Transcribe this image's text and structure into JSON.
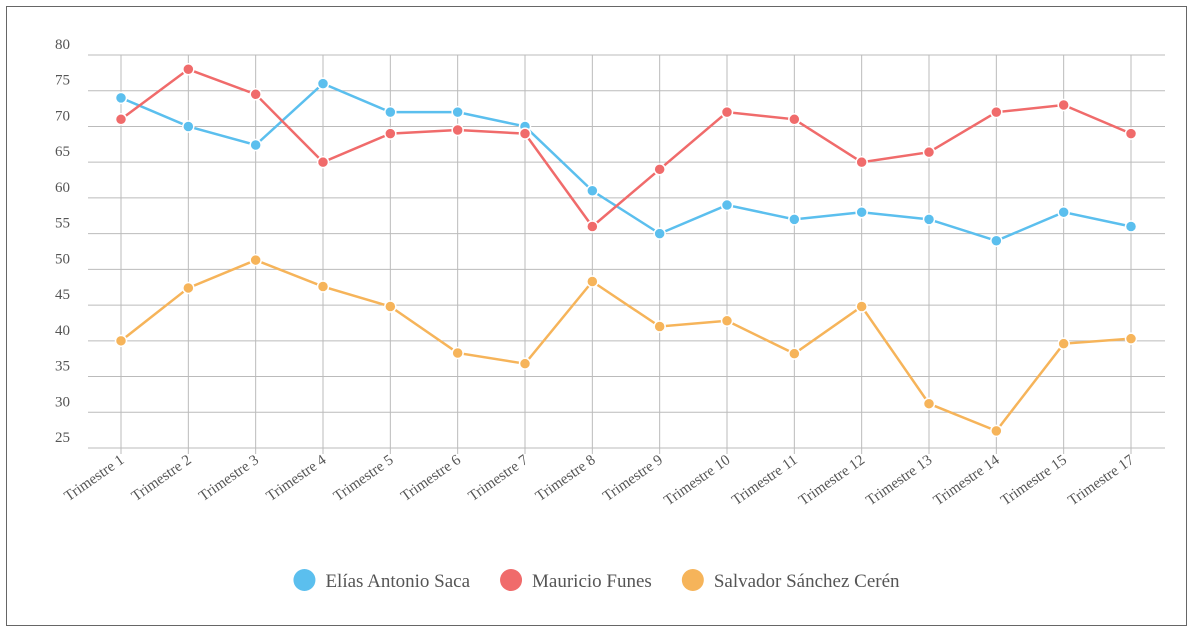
{
  "chart_data": {
    "type": "line",
    "categories": [
      "Trimestre 1",
      "Trimestre 2",
      "Trimestre 3",
      "Trimestre 4",
      "Trimestre 5",
      "Trimestre 6",
      "Trimestre 7",
      "Trimestre 8",
      "Trimestre 9",
      "Trimestre 10",
      "Trimestre 11",
      "Trimestre 12",
      "Trimestre 13",
      "Trimestre 14",
      "Trimestre 15",
      "Trimestre 17"
    ],
    "series": [
      {
        "name": "Elías Antonio Saca",
        "color": "#5bbfee",
        "values": [
          74,
          70,
          67.4,
          76,
          72,
          72,
          70,
          61,
          55,
          59,
          57,
          58,
          57,
          54,
          58,
          56
        ]
      },
      {
        "name": "Mauricio Funes",
        "color": "#f06b6b",
        "values": [
          71,
          78,
          74.5,
          65,
          69,
          69.5,
          69,
          56,
          64,
          72,
          71,
          65,
          66.4,
          72,
          73,
          69
        ]
      },
      {
        "name": "Salvador Sánchez Cerén",
        "color": "#f6b45a",
        "values": [
          40,
          47.4,
          51.3,
          47.6,
          44.8,
          38.3,
          36.8,
          48.3,
          42,
          42.8,
          38.2,
          44.8,
          31.2,
          27.4,
          39.6,
          40.3
        ]
      }
    ],
    "ylim": [
      25,
      80
    ],
    "yticks": [
      25,
      30,
      35,
      40,
      45,
      50,
      55,
      60,
      65,
      70,
      75,
      80
    ],
    "grid": true,
    "legend": "bottom"
  }
}
